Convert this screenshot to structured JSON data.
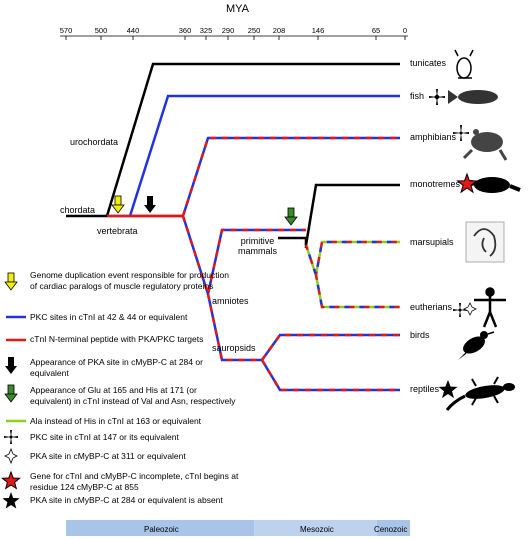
{
  "axis": {
    "title": "MYA",
    "ticks": [
      "570",
      "500",
      "440",
      "360",
      "325",
      "290",
      "250",
      "208",
      "146",
      "65",
      "0"
    ]
  },
  "taxa": {
    "tunicates": "tunicates",
    "fish": "fish",
    "amphibians": "amphibians",
    "monotremes": "monotremes",
    "marsupials": "marsupials",
    "eutherians": "eutherians",
    "birds": "birds",
    "reptiles": "reptiles"
  },
  "clades": {
    "urochordata": "urochordata",
    "chordata": "chordata",
    "vertebrata": "vertebrata",
    "amniotes": "amniotes",
    "sauropsids": "sauropsids",
    "primitive_mammals": "primitive\nmammals"
  },
  "legend": [
    {
      "symbol": "yellow-arrow",
      "text": "Genome duplication event responsible for production of cardiac paralogs of muscle regulatory proteins"
    },
    {
      "symbol": "blue-line",
      "text": "PKC sites in cTnI at 42 & 44 or equivalent"
    },
    {
      "symbol": "red-line",
      "text": "cTnI N-terminal peptide with PKA/PKC targets"
    },
    {
      "symbol": "black-arrow",
      "text": "Appearance of PKA site in cMyBP-C at 284 or equivalent"
    },
    {
      "symbol": "green-arrow",
      "text": "Appearance of Glu at 165 and His at 171 (or equivalent) in cTnI instead of Val and Asn, respectively"
    },
    {
      "symbol": "green-line",
      "text": "Ala instead of His in cTnI at 163 or equivalent"
    },
    {
      "symbol": "black-cross",
      "text": "PKC site in cTnI at 147 or its equivalent"
    },
    {
      "symbol": "open-cross",
      "text": "PKA site in cMyBP-C at 311 or equivalent"
    },
    {
      "symbol": "red-star",
      "text": "Gene for cTnI and cMyBP-C incomplete, cTnI begins at residue 124 cMyBP-C at 855"
    },
    {
      "symbol": "black-star",
      "text": "PKA site in cMyBP-C at 284 or equivalent is absent"
    }
  ],
  "eras": [
    "Paleozoic",
    "Mesozoic",
    "Cenozoic"
  ],
  "colors": {
    "blue": "#2233dd",
    "red": "#e01818",
    "green": "#8ad020",
    "yellow": "#f0f000",
    "darkgreen": "#3a8a2a",
    "era_bar": "#a8c4e8"
  }
}
